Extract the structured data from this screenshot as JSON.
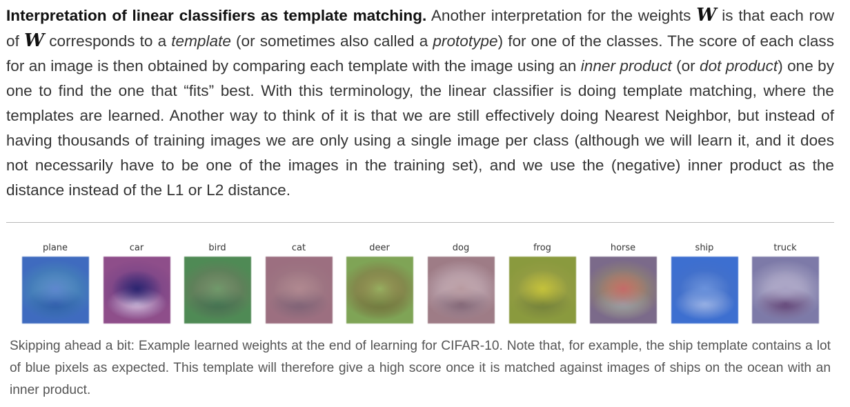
{
  "paragraph": {
    "heading": "Interpretation of linear classifiers as template matching.",
    "t1": " Another interpretation for the weights ",
    "w1": "W",
    "t2": " is that each row of ",
    "w2": "W",
    "t3": " corresponds to a ",
    "e1": "template",
    "t4": " (or sometimes also called a ",
    "e2": "prototype",
    "t5": ") for one of the classes. The score of each class for an image is then obtained by comparing each template with the image using an ",
    "e3": "inner product",
    "t6": " (or ",
    "e4": "dot product",
    "t7": ") one by one to find the one that “fits” best. With this terminology, the linear classifier is doing template matching, where the templates are learned. Another way to think of it is that we are still effectively doing Nearest Neighbor, but instead of having thousands of training images we are only using a single image per class (although we will learn it, and it does not necessarily have to be one of the images in the training set), and we use the (negative) inner product as the distance instead of the L1 or L2 distance."
  },
  "figure": {
    "templates": [
      {
        "label": "plane",
        "colors": [
          "#3f6bbf",
          "#5e86cf",
          "#2c5aa8",
          "#4c9ab0"
        ]
      },
      {
        "label": "car",
        "colors": [
          "#8e4e8a",
          "#2c2570",
          "#d9c3e0",
          "#6b3f86"
        ]
      },
      {
        "label": "bird",
        "colors": [
          "#4f8a55",
          "#6f9a6a",
          "#3f6f4f",
          "#7a6f62"
        ]
      },
      {
        "label": "cat",
        "colors": [
          "#9c6f80",
          "#b08890",
          "#7a5f74",
          "#a07e86"
        ]
      },
      {
        "label": "deer",
        "colors": [
          "#7fa456",
          "#96b060",
          "#6f7a3e",
          "#8a5a3c"
        ]
      },
      {
        "label": "dog",
        "colors": [
          "#9e7c86",
          "#b89aa0",
          "#7a5f70",
          "#d2c2cc"
        ]
      },
      {
        "label": "frog",
        "colors": [
          "#8a9a3e",
          "#c4c23a",
          "#6f7e3a",
          "#a0a04a"
        ]
      },
      {
        "label": "horse",
        "colors": [
          "#7b6a8a",
          "#c46a6a",
          "#9aa0a8",
          "#a69a5a"
        ]
      },
      {
        "label": "ship",
        "colors": [
          "#3d6fd0",
          "#6a92dc",
          "#9fb6e6",
          "#4a72c4"
        ]
      },
      {
        "label": "truck",
        "colors": [
          "#7d7aa8",
          "#a8a2c4",
          "#5a3a6e",
          "#c4c0d6"
        ]
      }
    ]
  },
  "caption": "Skipping ahead a bit: Example learned weights at the end of learning for CIFAR-10. Note that, for example, the ship template contains a lot of blue pixels as expected. This template will therefore give a high score once it is matched against images of ships on the ocean with an inner product."
}
